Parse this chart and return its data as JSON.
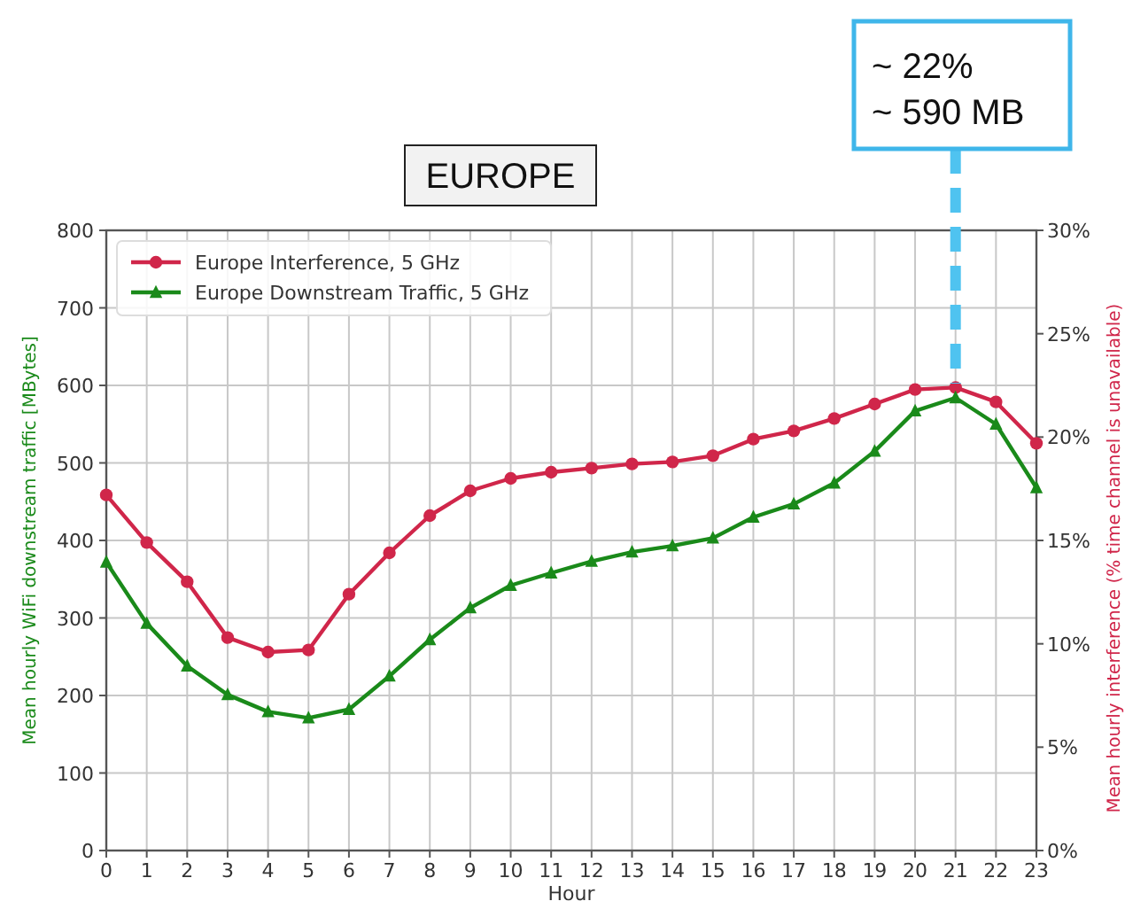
{
  "chart_data": {
    "type": "line",
    "title": "EUROPE",
    "xlabel": "Hour",
    "ylabel": "Mean hourly WiFi downstream traffic [MBytes]",
    "y2label": "Mean hourly interference (% time channel is unavailable)",
    "x": [
      0,
      1,
      2,
      3,
      4,
      5,
      6,
      7,
      8,
      9,
      10,
      11,
      12,
      13,
      14,
      15,
      16,
      17,
      18,
      19,
      20,
      21,
      22,
      23
    ],
    "series": [
      {
        "name": "Europe Interference, 5 GHz",
        "color": "#d0264a",
        "axis": "y2",
        "marker": "circle",
        "values": [
          17.2,
          14.9,
          13.0,
          10.3,
          9.6,
          9.7,
          12.4,
          14.4,
          16.2,
          17.4,
          18.0,
          18.3,
          18.5,
          18.7,
          18.8,
          19.1,
          19.9,
          20.3,
          20.9,
          21.6,
          22.3,
          22.4,
          21.7,
          19.7
        ]
      },
      {
        "name": "Europe Downstream Traffic, 5 GHz",
        "color": "#1a8a1a",
        "marker": "triangle",
        "values": [
          372,
          293,
          238,
          201,
          179,
          171,
          182,
          225,
          272,
          313,
          342,
          358,
          373,
          385,
          393,
          403,
          430,
          447,
          474,
          515,
          567,
          584,
          550,
          468
        ]
      }
    ],
    "xlim": [
      0,
      23
    ],
    "xticks": [
      0,
      1,
      2,
      3,
      4,
      5,
      6,
      7,
      8,
      9,
      10,
      11,
      12,
      13,
      14,
      15,
      16,
      17,
      18,
      19,
      20,
      21,
      22,
      23
    ],
    "ylim": [
      0,
      800
    ],
    "yticks": [
      0,
      100,
      200,
      300,
      400,
      500,
      600,
      700,
      800
    ],
    "y2lim": [
      0,
      30
    ],
    "y2ticks": [
      {
        "value": 0,
        "label": "0%"
      },
      {
        "value": 5,
        "label": "5%"
      },
      {
        "value": 10,
        "label": "10%"
      },
      {
        "value": 15,
        "label": "15%"
      },
      {
        "value": 20,
        "label": "20%"
      },
      {
        "value": 25,
        "label": "25%"
      },
      {
        "value": 30,
        "label": "30%"
      }
    ],
    "annotations": [
      {
        "text": "~ 22%\n~ 590 MB",
        "x": 21,
        "y": 584
      }
    ],
    "grid": true,
    "legend": "top left",
    "line_style": "solid"
  }
}
